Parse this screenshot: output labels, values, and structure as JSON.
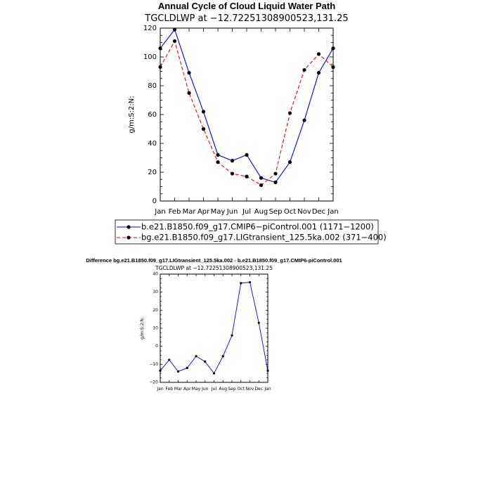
{
  "chart_data": [
    {
      "type": "line",
      "title": "Annual Cycle of Cloud Liquid Water Path",
      "subtitle": "TGCLDLWP at -12.72251308900523,131.25",
      "ylabel": "g/m:S:2:N:",
      "xlabel": "",
      "categories": [
        "Jan",
        "Feb",
        "Mar",
        "Apr",
        "May",
        "Jun",
        "Jul",
        "Aug",
        "Sep",
        "Oct",
        "Nov",
        "Dec",
        "Jan"
      ],
      "yticks": [
        0,
        20,
        40,
        60,
        80,
        100,
        120
      ],
      "ylim": [
        0,
        120
      ],
      "series": [
        {
          "name": "b.e21.B1850.f09_g17.CMIP6-piControl.001 (1171-1200)",
          "color": "#0000ff",
          "dash": "solid",
          "values": [
            106,
            119,
            89,
            62,
            32,
            28,
            32,
            16,
            13,
            27,
            56,
            89,
            106
          ]
        },
        {
          "name": "bg.e21.B1850.f09_g17.LIGtransient_125.5ka.002 (371-400)",
          "color": "#ff0000",
          "dash": "dashed",
          "values": [
            93,
            111,
            75,
            50,
            27,
            19,
            17,
            11,
            19,
            61,
            91,
            102,
            93
          ]
        }
      ]
    },
    {
      "type": "line",
      "title": "Difference bg.e21.B1850.f09_g17.LIGtransient_125.5ka.002 - b.e21.B1850.f09_g17.CMIP6-piControl.001",
      "subtitle": "TGCLDLWP at -12.72251308900523,131.25",
      "ylabel": "g/m:S:2:N:",
      "xlabel": "",
      "categories": [
        "Jan",
        "Feb",
        "Mar",
        "Apr",
        "May",
        "Jun",
        "Jul",
        "Aug",
        "Sep",
        "Oct",
        "Nov",
        "Dec",
        "Jan"
      ],
      "yticks": [
        -20,
        -10,
        0,
        10,
        20,
        30,
        40
      ],
      "ylim": [
        -20,
        40
      ],
      "series": [
        {
          "name": "difference",
          "color": "#0000ff",
          "dash": "solid",
          "values": [
            -13.5,
            -7.5,
            -14,
            -12,
            -5.5,
            -8.5,
            -15,
            -5.5,
            6,
            35,
            35.5,
            13,
            -13.5
          ]
        }
      ]
    }
  ]
}
